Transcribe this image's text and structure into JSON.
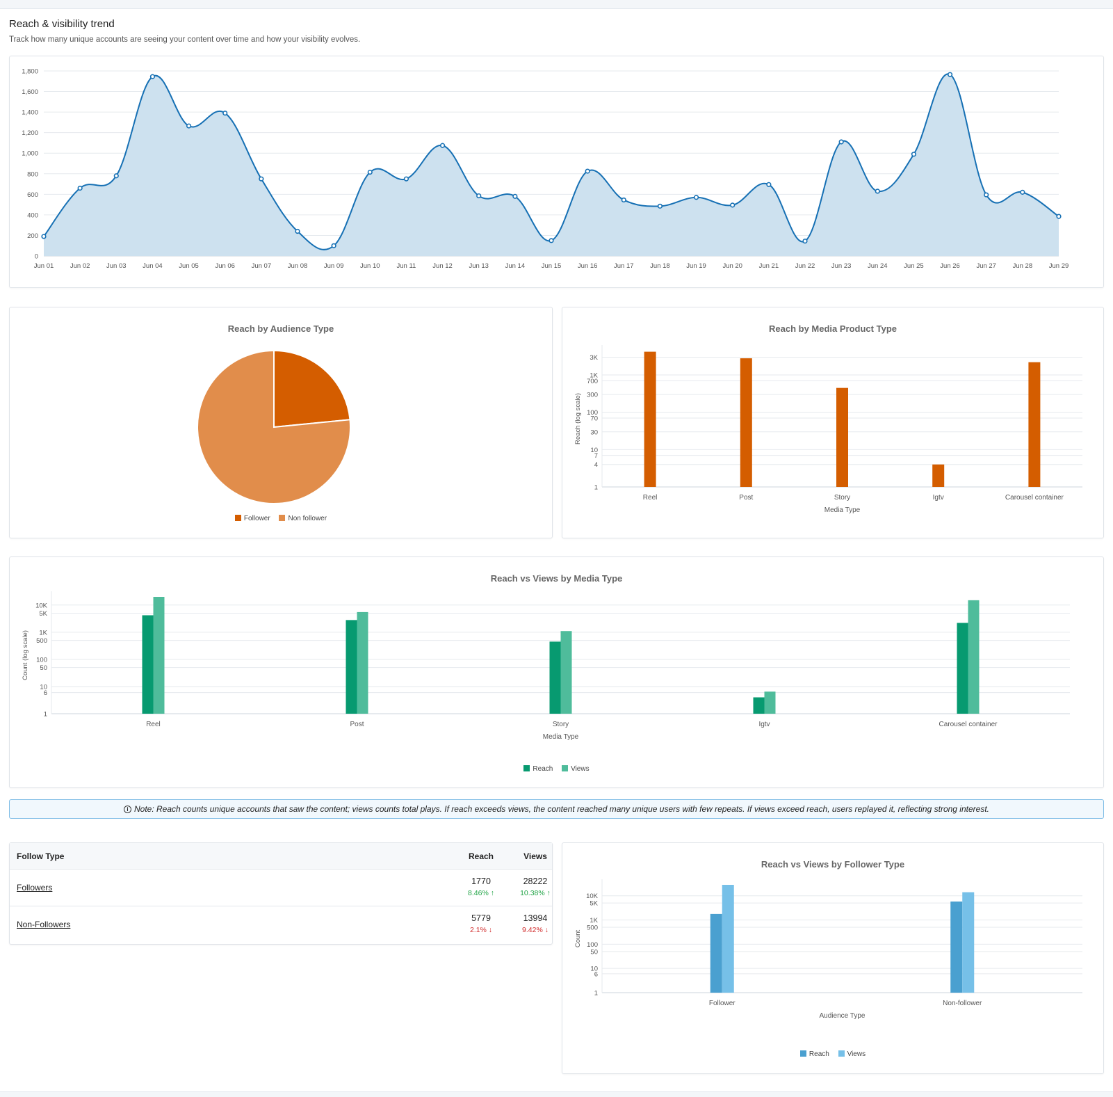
{
  "header": {
    "title": "Reach & visibility trend",
    "subtitle": "Track how many unique accounts are seeing your content over time and how your visibility evolves."
  },
  "colors": {
    "trend_line": "#1670b4",
    "trend_fill": "#cde1ef",
    "follower_pie": "#d45d00",
    "nonfollower_pie": "#e18d4b",
    "media_bar": "#d45d00",
    "reach_green": "#079a70",
    "views_green": "#4fbc9b",
    "reach_blue": "#4aa0d0",
    "views_blue": "#76c0e8"
  },
  "trend_chart": {
    "type": "area",
    "x": [
      "Jun 01",
      "Jun 02",
      "Jun 03",
      "Jun 04",
      "Jun 05",
      "Jun 06",
      "Jun 07",
      "Jun 08",
      "Jun 09",
      "Jun 10",
      "Jun 11",
      "Jun 12",
      "Jun 13",
      "Jun 14",
      "Jun 15",
      "Jun 16",
      "Jun 17",
      "Jun 18",
      "Jun 19",
      "Jun 20",
      "Jun 21",
      "Jun 22",
      "Jun 23",
      "Jun 24",
      "Jun 25",
      "Jun 26",
      "Jun 27",
      "Jun 28",
      "Jun 29"
    ],
    "values": [
      190,
      660,
      780,
      1745,
      1265,
      1390,
      750,
      240,
      100,
      815,
      750,
      1075,
      585,
      580,
      150,
      825,
      545,
      485,
      570,
      495,
      695,
      145,
      1110,
      630,
      990,
      1765,
      595,
      620,
      385
    ],
    "ylim": [
      0,
      1800
    ],
    "yticks": [
      "0",
      "200",
      "400",
      "600",
      "800",
      "1,000",
      "1,200",
      "1,400",
      "1,600",
      "1,800"
    ],
    "grid": true
  },
  "audience_pie": {
    "type": "pie",
    "title": "Reach by Audience Type",
    "categories": [
      "Follower",
      "Non follower"
    ],
    "values": [
      1770,
      5779
    ],
    "legend": "bottom"
  },
  "media_bar": {
    "type": "bar",
    "title": "Reach by Media Product Type",
    "xlabel": "Media Type",
    "ylabel": "Reach (log scale)",
    "categories": [
      "Reel",
      "Post",
      "Story",
      "Igtv",
      "Carousel container"
    ],
    "values": [
      4200,
      2800,
      450,
      4,
      2200
    ],
    "yscale": "log",
    "yticks": [
      1,
      4,
      7,
      10,
      30,
      70,
      100,
      300,
      700,
      1000,
      3000
    ],
    "ytick_labels": [
      "1",
      "4",
      "7",
      "10",
      "30",
      "70",
      "100",
      "300",
      "700",
      "1K",
      "3K"
    ]
  },
  "reach_views_media": {
    "type": "bar",
    "title": "Reach vs Views by Media Type",
    "xlabel": "Media Type",
    "ylabel": "Count (log scale)",
    "categories": [
      "Reel",
      "Post",
      "Story",
      "Igtv",
      "Carousel container"
    ],
    "series": [
      {
        "name": "Reach",
        "values": [
          4200,
          2800,
          450,
          4,
          2200
        ]
      },
      {
        "name": "Views",
        "values": [
          20000,
          5500,
          1100,
          6.5,
          15000
        ]
      }
    ],
    "yscale": "log",
    "yticks": [
      1,
      6,
      10,
      50,
      100,
      500,
      1000,
      5000,
      10000
    ],
    "ytick_labels": [
      "1",
      "6",
      "10",
      "50",
      "100",
      "500",
      "1K",
      "5K",
      "10K"
    ],
    "legend": "bottom"
  },
  "note": {
    "icon": "info-icon",
    "text": "Note: Reach counts unique accounts that saw the content; views counts total plays. If reach exceeds views, the content reached many unique users with few repeats. If views exceed reach, users replayed it, reflecting strong interest."
  },
  "follow_table": {
    "headers": [
      "Follow Type",
      "Reach",
      "Views"
    ],
    "rows": [
      {
        "name": "Followers",
        "reach": "1770",
        "reach_change": "8.46%",
        "reach_dir": "up",
        "views": "28222",
        "views_change": "10.38%",
        "views_dir": "up"
      },
      {
        "name": "Non-Followers",
        "reach": "5779",
        "reach_change": "2.1%",
        "reach_dir": "down",
        "views": "13994",
        "views_change": "9.42%",
        "views_dir": "down"
      }
    ]
  },
  "reach_views_follower": {
    "type": "bar",
    "title": "Reach vs Views by Follower Type",
    "xlabel": "Audience Type",
    "ylabel": "Count",
    "categories": [
      "Follower",
      "Non-follower"
    ],
    "series": [
      {
        "name": "Reach",
        "values": [
          1770,
          5779
        ]
      },
      {
        "name": "Views",
        "values": [
          28222,
          13994
        ]
      }
    ],
    "yscale": "log",
    "yticks": [
      1,
      6,
      10,
      50,
      100,
      500,
      1000,
      5000,
      10000
    ],
    "ytick_labels": [
      "1",
      "6",
      "10",
      "50",
      "100",
      "500",
      "1K",
      "5K",
      "10K"
    ],
    "legend": "bottom"
  }
}
